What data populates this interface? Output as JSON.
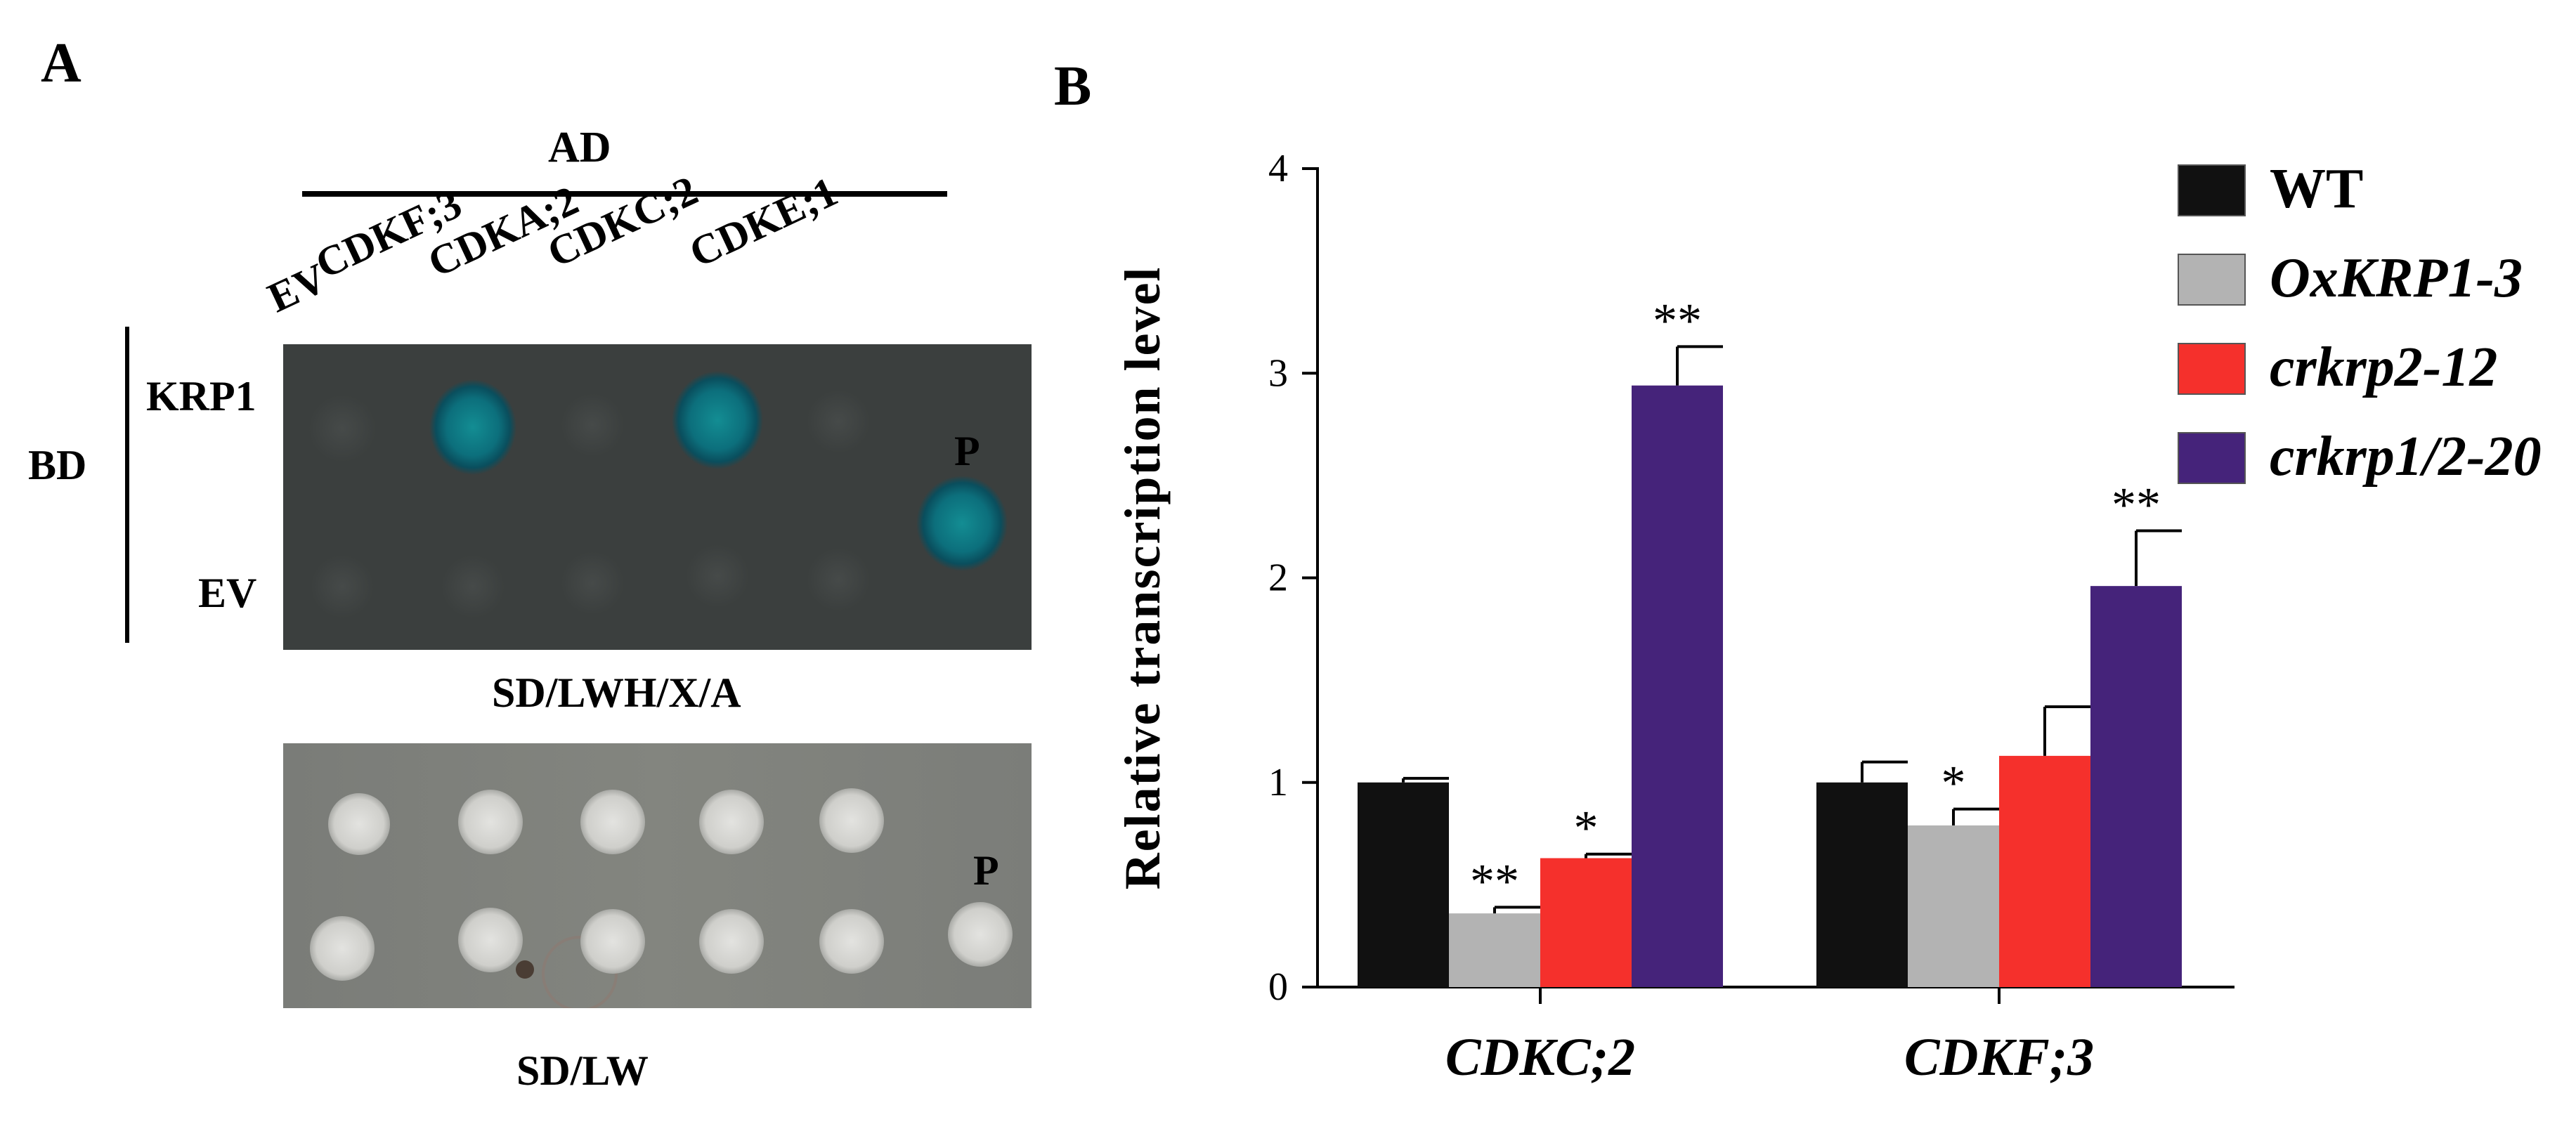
{
  "panel_a": {
    "label": "A",
    "ad_label": "AD",
    "bd_label": "BD",
    "columns": [
      "EV",
      "CDKF;3",
      "CDKA;2",
      "CDKC;2",
      "CDKE;1"
    ],
    "rows": [
      "KRP1",
      "EV"
    ],
    "positive_label": "P",
    "plate_top_caption": "SD/LWH/X/A",
    "plate_bottom_caption": "SD/LW",
    "colors": {
      "plate_top": "#3b3f3e",
      "blue_spot": "#0f7f8a",
      "plate_bottom": "#7e807b",
      "colony": "#d9d9d6"
    }
  },
  "panel_b": {
    "label": "B",
    "chart_data": {
      "type": "bar",
      "categories": [
        "CDKC;2",
        "CDKF;3"
      ],
      "ylabel": "Relative transcription level",
      "xlabel": "",
      "ylim": [
        0,
        4
      ],
      "yticks": [
        "0",
        "1",
        "2",
        "3",
        "4"
      ],
      "legend_position": "top-right",
      "series": [
        {
          "name": "WT",
          "color": "#111111",
          "values": [
            1.0,
            1.0
          ],
          "errors": [
            0.02,
            0.1
          ],
          "sig": [
            "",
            ""
          ]
        },
        {
          "name": "OxKRP1-3",
          "color": "#b3b3b3",
          "values": [
            0.36,
            0.79
          ],
          "errors": [
            0.03,
            0.08
          ],
          "sig": [
            "**",
            "*"
          ]
        },
        {
          "name": "crkrp2-12",
          "color": "#f5302c",
          "values": [
            0.63,
            1.13
          ],
          "errors": [
            0.02,
            0.24
          ],
          "sig": [
            "*",
            ""
          ]
        },
        {
          "name": "crkrp1/2-20",
          "color": "#45237a",
          "values": [
            2.94,
            1.96
          ],
          "errors": [
            0.19,
            0.27
          ],
          "sig": [
            "**",
            "**"
          ]
        }
      ]
    }
  }
}
